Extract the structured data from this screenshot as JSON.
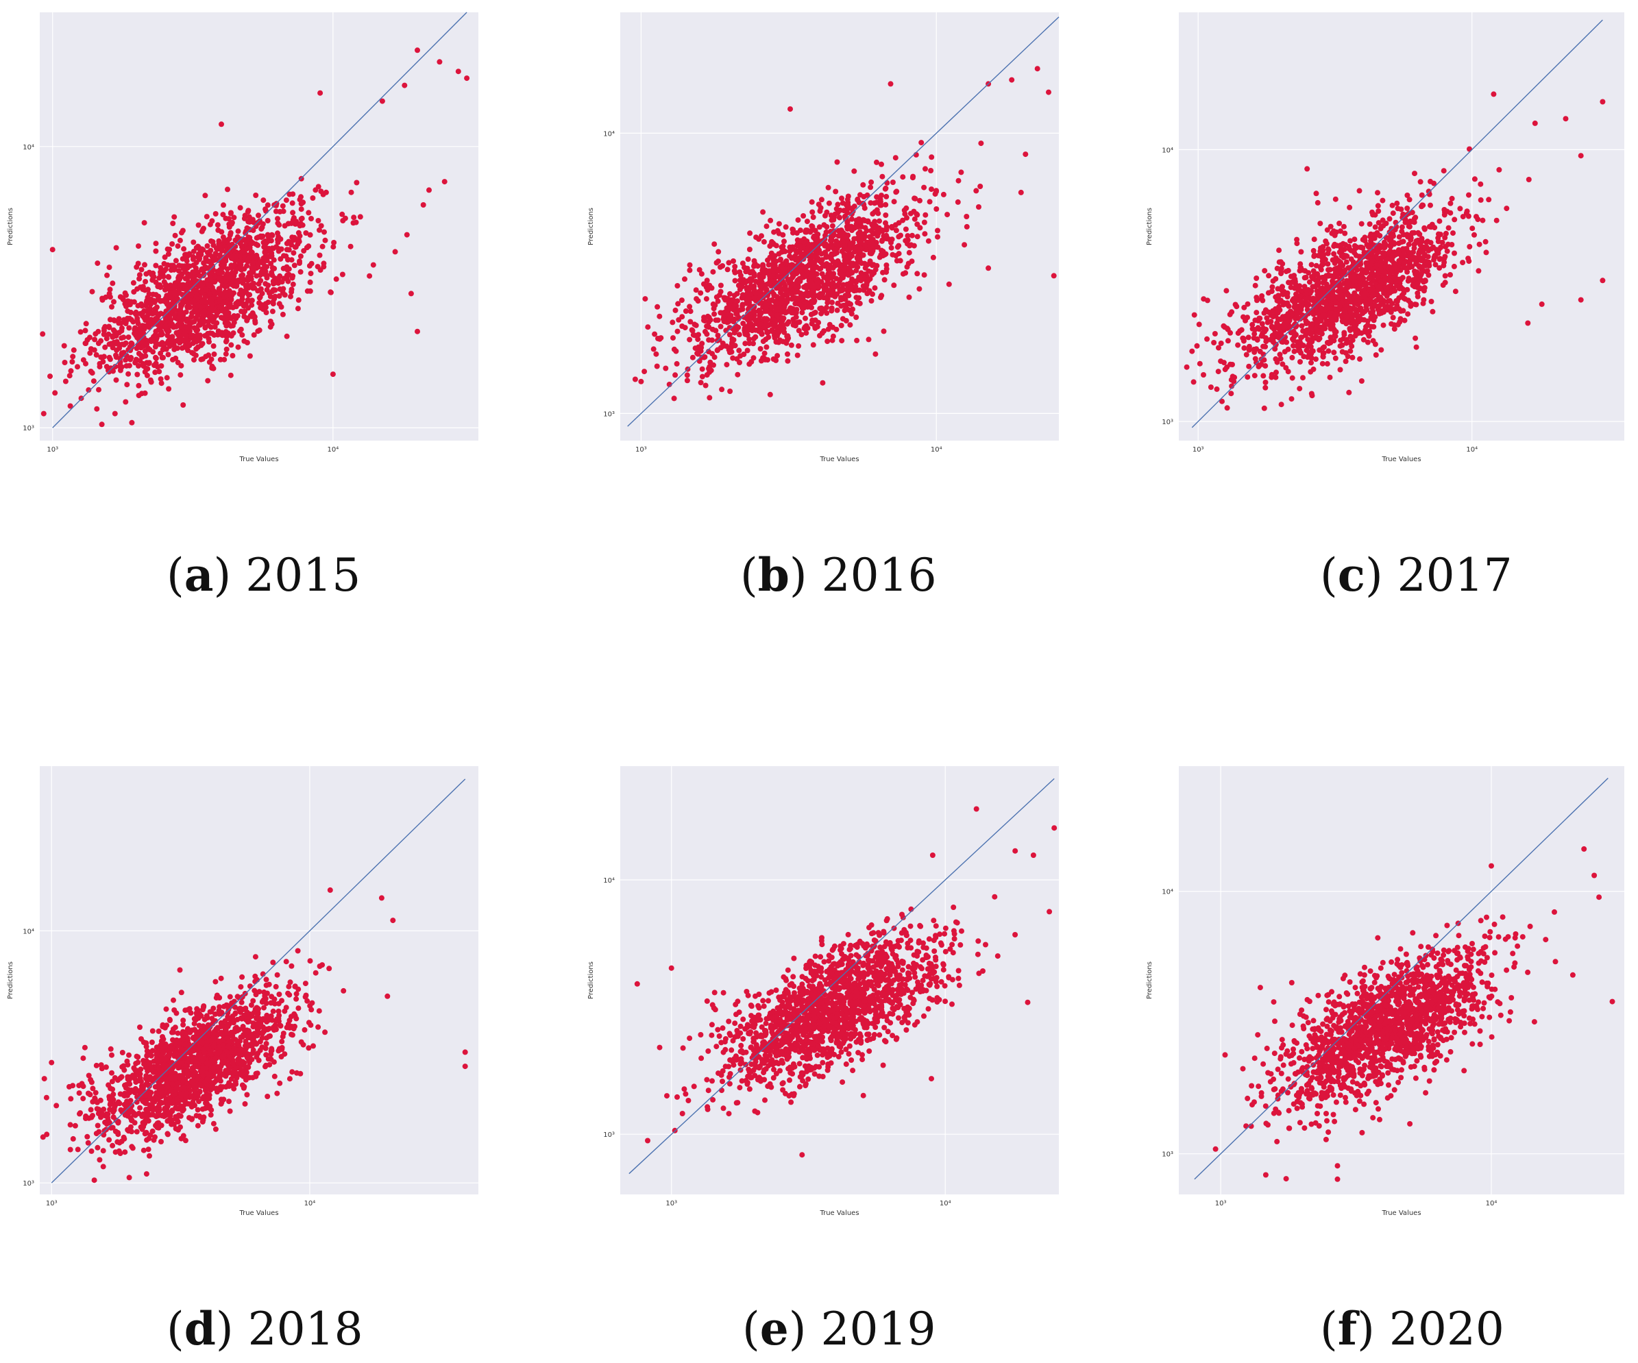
{
  "figure": {
    "panels": [
      {
        "label": "a",
        "year": "2015"
      },
      {
        "label": "b",
        "year": "2016"
      },
      {
        "label": "c",
        "year": "2017"
      },
      {
        "label": "d",
        "year": "2018"
      },
      {
        "label": "e",
        "year": "2019"
      },
      {
        "label": "f",
        "year": "2020"
      }
    ]
  },
  "colors": {
    "background": "#eaeaf2",
    "grid": "#ffffff",
    "points": "#dc143c",
    "diagonal": "#4c72b0"
  },
  "chart_data": [
    {
      "type": "scatter",
      "caption": "2015",
      "xlabel": "True Values",
      "ylabel": "Predictions",
      "xscale": "log",
      "yscale": "log",
      "xlim": [
        900,
        33000
      ],
      "ylim": [
        900,
        30000
      ],
      "xticks": [
        1000,
        10000
      ],
      "yticks": [
        1000,
        10000
      ],
      "xtick_labels": [
        "10³",
        "10⁴"
      ],
      "ytick_labels": [
        "10³",
        "10⁴"
      ],
      "diagonal": [
        1000,
        30000
      ],
      "grid": true,
      "cluster": {
        "center_x": 3500,
        "center_y": 3000,
        "count": 1600
      },
      "outliers": [
        [
          20000,
          22000
        ],
        [
          24000,
          20000
        ],
        [
          28000,
          18500
        ],
        [
          30000,
          17500
        ],
        [
          18000,
          16500
        ],
        [
          15000,
          14500
        ],
        [
          9000,
          15500
        ],
        [
          19000,
          3000
        ],
        [
          20000,
          2200
        ],
        [
          10000,
          1550
        ],
        [
          22000,
          7000
        ],
        [
          21000,
          6200
        ],
        [
          1000,
          4300
        ],
        [
          4000,
          12000
        ],
        [
          25000,
          7500
        ]
      ]
    },
    {
      "type": "scatter",
      "caption": "2016",
      "xlabel": "True Values",
      "ylabel": "Predictions",
      "xscale": "log",
      "yscale": "log",
      "xlim": [
        850,
        26000
      ],
      "ylim": [
        800,
        27000
      ],
      "xticks": [
        1000,
        10000
      ],
      "yticks": [
        1000,
        10000
      ],
      "xtick_labels": [
        "10³",
        "10⁴"
      ],
      "ytick_labels": [
        "10³",
        "10⁴"
      ],
      "diagonal": [
        900,
        26000
      ],
      "grid": true,
      "cluster": {
        "center_x": 3500,
        "center_y": 3000,
        "count": 1600
      },
      "outliers": [
        [
          22000,
          17000
        ],
        [
          24000,
          14000
        ],
        [
          18000,
          15500
        ],
        [
          15000,
          15000
        ],
        [
          7000,
          15000
        ],
        [
          15000,
          3300
        ],
        [
          25000,
          3100
        ],
        [
          3200,
          12200
        ],
        [
          1000,
          1300
        ],
        [
          2000,
          1200
        ]
      ]
    },
    {
      "type": "scatter",
      "caption": "2017",
      "xlabel": "True Values",
      "ylabel": "Predictions",
      "xscale": "log",
      "yscale": "log",
      "xlim": [
        850,
        36000
      ],
      "ylim": [
        850,
        32000
      ],
      "xticks": [
        1000,
        10000
      ],
      "yticks": [
        1000,
        10000
      ],
      "xtick_labels": [
        "10³",
        "10⁴"
      ],
      "ytick_labels": [
        "10³",
        "10⁴"
      ],
      "diagonal": [
        950,
        30000
      ],
      "grid": true,
      "cluster": {
        "center_x": 3500,
        "center_y": 3000,
        "count": 1600
      },
      "outliers": [
        [
          12000,
          16000
        ],
        [
          30000,
          15000
        ],
        [
          22000,
          13000
        ],
        [
          17000,
          12500
        ],
        [
          25000,
          9500
        ],
        [
          30000,
          3300
        ],
        [
          25000,
          2800
        ],
        [
          18000,
          2700
        ],
        [
          16000,
          2300
        ],
        [
          2500,
          8500
        ],
        [
          2700,
          6900
        ]
      ]
    },
    {
      "type": "scatter",
      "caption": "2018",
      "xlabel": "True Values",
      "ylabel": "Predictions",
      "xscale": "log",
      "yscale": "log",
      "xlim": [
        900,
        45000
      ],
      "ylim": [
        900,
        45000
      ],
      "xticks": [
        1000,
        10000
      ],
      "yticks": [
        1000,
        10000
      ],
      "xtick_labels": [
        "10³",
        "10⁴"
      ],
      "ytick_labels": [
        "10³",
        "10⁴"
      ],
      "diagonal": [
        1000,
        40000
      ],
      "grid": true,
      "cluster": {
        "center_x": 3500,
        "center_y": 2900,
        "count": 1600
      },
      "outliers": [
        [
          40000,
          3300
        ],
        [
          40000,
          2900
        ],
        [
          21000,
          11000
        ],
        [
          19000,
          13500
        ],
        [
          12000,
          14500
        ],
        [
          2000,
          1050
        ],
        [
          1000,
          3000
        ],
        [
          20000,
          5500
        ]
      ]
    },
    {
      "type": "scatter",
      "caption": "2019",
      "xlabel": "True Values",
      "ylabel": "Predictions",
      "xscale": "log",
      "yscale": "log",
      "xlim": [
        650,
        26000
      ],
      "ylim": [
        580,
        28000
      ],
      "xticks": [
        1000,
        10000
      ],
      "yticks": [
        1000,
        10000
      ],
      "xtick_labels": [
        "10³",
        "10⁴"
      ],
      "ytick_labels": [
        "10³",
        "10⁴"
      ],
      "diagonal": [
        700,
        25000
      ],
      "grid": true,
      "cluster": {
        "center_x": 3800,
        "center_y": 3100,
        "count": 1600
      },
      "outliers": [
        [
          13000,
          19000
        ],
        [
          25000,
          16000
        ],
        [
          18000,
          13000
        ],
        [
          21000,
          12500
        ],
        [
          9000,
          12500
        ],
        [
          24000,
          7500
        ],
        [
          20000,
          3300
        ],
        [
          750,
          3900
        ],
        [
          3000,
          830
        ],
        [
          1000,
          4500
        ]
      ]
    },
    {
      "type": "scatter",
      "caption": "2020",
      "xlabel": "True Values",
      "ylabel": "Predictions",
      "xscale": "log",
      "yscale": "log",
      "xlim": [
        700,
        31000
      ],
      "ylim": [
        700,
        30000
      ],
      "xticks": [
        1000,
        10000
      ],
      "yticks": [
        1000,
        10000
      ],
      "xtick_labels": [
        "10³",
        "10⁴"
      ],
      "ytick_labels": [
        "10³",
        "10⁴"
      ],
      "diagonal": [
        800,
        27000
      ],
      "grid": true,
      "cluster": {
        "center_x": 4000,
        "center_y": 3000,
        "count": 1600
      },
      "outliers": [
        [
          22000,
          14500
        ],
        [
          24000,
          11500
        ],
        [
          25000,
          9500
        ],
        [
          28000,
          3800
        ],
        [
          20000,
          4800
        ],
        [
          10000,
          12500
        ],
        [
          2700,
          800
        ],
        [
          2700,
          900
        ],
        [
          5000,
          1300
        ],
        [
          1400,
          4300
        ]
      ]
    }
  ]
}
